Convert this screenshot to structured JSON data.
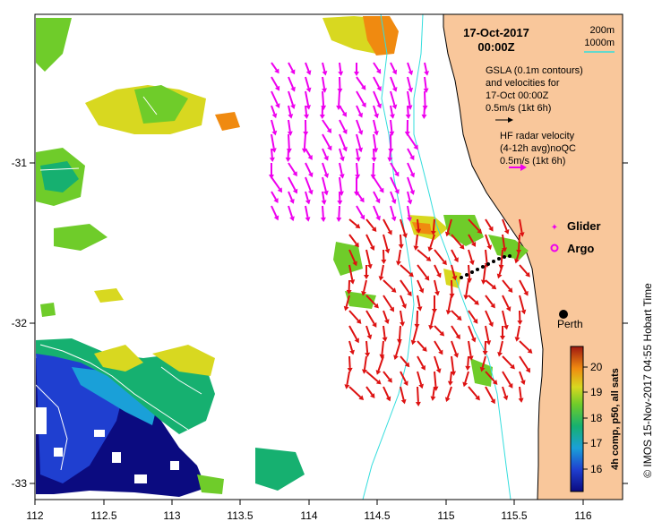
{
  "map": {
    "date": "17-Oct-2017",
    "time": "00:00Z",
    "lon_ticks": [
      "112",
      "112.5",
      "113",
      "113.5",
      "114",
      "114.5",
      "115",
      "115.5",
      "116"
    ],
    "lat_ticks": [
      "-31",
      "-32",
      "-33"
    ],
    "lon_range": [
      112,
      116.3
    ],
    "lat_range": [
      -33.1,
      -30.1
    ],
    "depth_legend": {
      "shallow": "200m",
      "deep": "1000m",
      "contour_color": "#33dddd"
    },
    "gsla_text": [
      "GSLA (0.1m contours)",
      "and velocities for",
      "17-Oct 00:00Z"
    ],
    "gsla_scale_label": "0.5m/s (1kt 6h)",
    "hf_text": [
      "HF radar velocity",
      "(4-12h avg)noQC"
    ],
    "hf_scale_label": "0.5m/s (1kt 6h)",
    "glider_label": "Glider",
    "argo_label": "Argo",
    "city_label": "Perth",
    "colorbar": {
      "ticks": [
        "20",
        "19",
        "18",
        "17",
        "16"
      ],
      "label": "4h comp, p50, all sats",
      "range": [
        15.5,
        20.6
      ]
    },
    "credit": "© IMOS 15-Nov-2017 04:55 Hobart Time",
    "colors": {
      "land": "#f9c79b",
      "hf_arrow": "#ee00ee",
      "current_arrow": "#dd1111",
      "glider": "#000000",
      "depth": "#33dddd"
    }
  }
}
